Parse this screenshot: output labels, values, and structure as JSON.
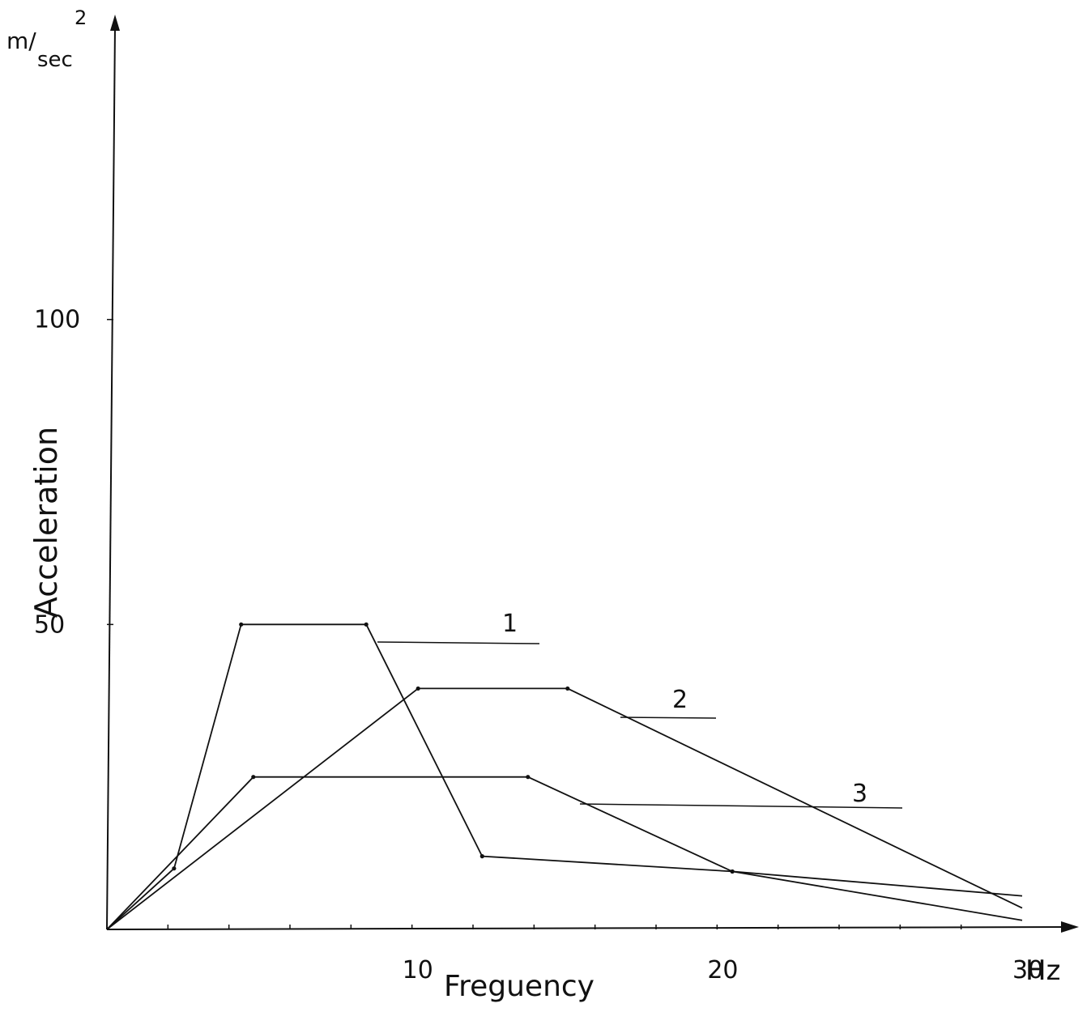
{
  "chart_data": {
    "type": "line",
    "xlabel": "Freguency",
    "x_unit": "Hz",
    "ylabel": "Acceleration",
    "y_unit_main": "m/",
    "y_unit_sub": "sec",
    "y_unit_exp": "2",
    "xlim": [
      0,
      30
    ],
    "ylim": [
      0,
      150
    ],
    "x_ticks": [
      10,
      20,
      30
    ],
    "y_ticks": [
      50,
      100
    ],
    "grid": false,
    "legend": "none",
    "series": [
      {
        "name": "1",
        "points": [
          [
            0,
            0
          ],
          [
            2.2,
            10
          ],
          [
            4.4,
            50
          ],
          [
            8.5,
            50
          ],
          [
            12.3,
            12
          ],
          [
            20.5,
            9.5
          ],
          [
            30,
            5.5
          ]
        ]
      },
      {
        "name": "2",
        "points": [
          [
            0,
            0
          ],
          [
            10.2,
            39.5
          ],
          [
            15.1,
            39.5
          ],
          [
            30,
            3.5
          ]
        ]
      },
      {
        "name": "3",
        "points": [
          [
            0,
            0
          ],
          [
            4.8,
            25
          ],
          [
            13.8,
            25
          ],
          [
            20.5,
            9.5
          ],
          [
            30,
            1.5
          ]
        ]
      }
    ]
  }
}
